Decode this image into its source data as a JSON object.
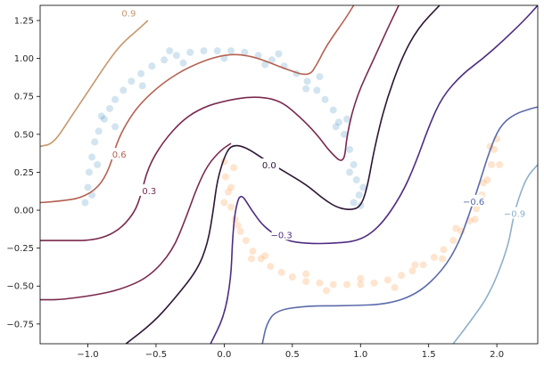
{
  "chart_data": {
    "type": "scatter",
    "title": "",
    "xlabel": "",
    "ylabel": "",
    "xlim": [
      -1.35,
      2.3
    ],
    "ylim": [
      -0.88,
      1.35
    ],
    "grid": false,
    "x_ticks": [
      {
        "value": -1.0,
        "label": "−1.0"
      },
      {
        "value": -0.5,
        "label": "−0.5"
      },
      {
        "value": 0.0,
        "label": "0.0"
      },
      {
        "value": 0.5,
        "label": "0.5"
      },
      {
        "value": 1.0,
        "label": "1.0"
      },
      {
        "value": 1.5,
        "label": "1.5"
      },
      {
        "value": 2.0,
        "label": "2.0"
      }
    ],
    "y_ticks": [
      {
        "value": -0.75,
        "label": "−0.75"
      },
      {
        "value": -0.5,
        "label": "−0.50"
      },
      {
        "value": -0.25,
        "label": "−0.25"
      },
      {
        "value": 0.0,
        "label": "0.00"
      },
      {
        "value": 0.25,
        "label": "0.25"
      },
      {
        "value": 0.5,
        "label": "0.50"
      },
      {
        "value": 0.75,
        "label": "0.75"
      },
      {
        "value": 1.0,
        "label": "1.00"
      },
      {
        "value": 1.25,
        "label": "1.25"
      }
    ],
    "scatter_series": [
      {
        "color": "#1f77b4",
        "opacity": 0.1,
        "points": [
          [
            -1.0,
            0.15
          ],
          [
            -0.99,
            0.25
          ],
          [
            -0.97,
            0.35
          ],
          [
            -0.95,
            0.45
          ],
          [
            -0.92,
            0.52
          ],
          [
            -0.88,
            0.6
          ],
          [
            -0.84,
            0.67
          ],
          [
            -0.8,
            0.73
          ],
          [
            -0.74,
            0.79
          ],
          [
            -0.68,
            0.85
          ],
          [
            -0.61,
            0.9
          ],
          [
            -0.53,
            0.95
          ],
          [
            -0.44,
            0.99
          ],
          [
            -0.35,
            1.02
          ],
          [
            -0.25,
            1.04
          ],
          [
            -0.15,
            1.05
          ],
          [
            -0.05,
            1.05
          ],
          [
            0.05,
            1.05
          ],
          [
            0.15,
            1.04
          ],
          [
            0.25,
            1.02
          ],
          [
            0.35,
            0.99
          ],
          [
            0.44,
            0.95
          ],
          [
            0.53,
            0.9
          ],
          [
            0.61,
            0.85
          ],
          [
            0.68,
            0.79
          ],
          [
            0.74,
            0.73
          ],
          [
            0.8,
            0.66
          ],
          [
            0.84,
            0.58
          ],
          [
            0.88,
            0.5
          ],
          [
            0.92,
            0.4
          ],
          [
            0.95,
            0.3
          ],
          [
            0.97,
            0.2
          ],
          [
            0.99,
            0.1
          ],
          [
            1.0,
            0.03
          ],
          [
            -0.97,
            0.1
          ],
          [
            -0.93,
            0.3
          ],
          [
            -0.8,
            0.55
          ],
          [
            -0.6,
            0.82
          ],
          [
            -0.3,
            0.97
          ],
          [
            0.0,
            1.0
          ],
          [
            0.3,
            0.96
          ],
          [
            0.6,
            0.8
          ],
          [
            0.82,
            0.55
          ],
          [
            0.92,
            0.25
          ],
          [
            0.95,
            0.05
          ],
          [
            -1.02,
            0.05
          ],
          [
            -0.9,
            0.62
          ],
          [
            -0.4,
            1.05
          ],
          [
            0.4,
            1.03
          ],
          [
            0.7,
            0.88
          ],
          [
            0.9,
            0.6
          ],
          [
            1.02,
            0.15
          ]
        ]
      },
      {
        "color": "#ff7f0e",
        "opacity": 0.1,
        "points": [
          [
            0.0,
            0.32
          ],
          [
            0.01,
            0.22
          ],
          [
            0.03,
            0.12
          ],
          [
            0.05,
            0.02
          ],
          [
            0.08,
            -0.06
          ],
          [
            0.12,
            -0.14
          ],
          [
            0.16,
            -0.2
          ],
          [
            0.21,
            -0.27
          ],
          [
            0.27,
            -0.32
          ],
          [
            0.34,
            -0.37
          ],
          [
            0.42,
            -0.41
          ],
          [
            0.5,
            -0.44
          ],
          [
            0.6,
            -0.47
          ],
          [
            0.7,
            -0.48
          ],
          [
            0.8,
            -0.49
          ],
          [
            0.9,
            -0.49
          ],
          [
            1.0,
            -0.49
          ],
          [
            1.1,
            -0.48
          ],
          [
            1.2,
            -0.46
          ],
          [
            1.3,
            -0.43
          ],
          [
            1.38,
            -0.4
          ],
          [
            1.46,
            -0.36
          ],
          [
            1.54,
            -0.31
          ],
          [
            1.61,
            -0.26
          ],
          [
            1.68,
            -0.2
          ],
          [
            1.74,
            -0.14
          ],
          [
            1.8,
            -0.07
          ],
          [
            1.85,
            0.01
          ],
          [
            1.89,
            0.1
          ],
          [
            1.93,
            0.2
          ],
          [
            1.96,
            0.3
          ],
          [
            1.98,
            0.4
          ],
          [
            2.0,
            0.47
          ],
          [
            0.05,
            0.15
          ],
          [
            0.1,
            -0.1
          ],
          [
            0.3,
            -0.3
          ],
          [
            0.6,
            -0.42
          ],
          [
            1.0,
            -0.45
          ],
          [
            1.4,
            -0.36
          ],
          [
            1.7,
            -0.12
          ],
          [
            1.9,
            0.18
          ],
          [
            1.95,
            0.42
          ],
          [
            0.0,
            0.05
          ],
          [
            0.2,
            -0.32
          ],
          [
            0.75,
            -0.53
          ],
          [
            1.25,
            -0.51
          ],
          [
            1.6,
            -0.32
          ],
          [
            1.84,
            -0.06
          ],
          [
            2.02,
            0.3
          ],
          [
            0.07,
            0.28
          ]
        ]
      }
    ],
    "contours": [
      {
        "level": "0.9",
        "color": "#c7966b",
        "points": [
          [
            -1.35,
            0.42
          ],
          [
            -1.25,
            0.44
          ],
          [
            -1.12,
            0.62
          ],
          [
            -1.0,
            0.78
          ],
          [
            -0.86,
            0.97
          ],
          [
            -0.76,
            1.09
          ],
          [
            -0.62,
            1.2
          ],
          [
            -0.56,
            1.25
          ]
        ],
        "label_at": [
          -0.7,
          1.3
        ]
      },
      {
        "level": "0.6",
        "color": "#b5604f",
        "points": [
          [
            -1.35,
            0.05
          ],
          [
            -1.2,
            0.06
          ],
          [
            -1.05,
            0.08
          ],
          [
            -0.92,
            0.15
          ],
          [
            -0.84,
            0.28
          ],
          [
            -0.79,
            0.44
          ],
          [
            -0.72,
            0.57
          ],
          [
            -0.62,
            0.7
          ],
          [
            -0.45,
            0.84
          ],
          [
            -0.25,
            0.95
          ],
          [
            0.0,
            1.03
          ],
          [
            0.2,
            1.02
          ],
          [
            0.45,
            0.93
          ],
          [
            0.62,
            0.88
          ],
          [
            0.68,
            0.96
          ],
          [
            0.73,
            1.05
          ],
          [
            0.8,
            1.15
          ],
          [
            0.88,
            1.25
          ],
          [
            0.95,
            1.35
          ]
        ],
        "label_at": [
          -0.77,
          0.37
        ]
      },
      {
        "level": "0.3",
        "color": "#79294f",
        "points": [
          [
            -1.35,
            -0.2
          ],
          [
            -1.2,
            -0.2
          ],
          [
            -0.95,
            -0.2
          ],
          [
            -0.78,
            -0.14
          ],
          [
            -0.66,
            -0.02
          ],
          [
            -0.61,
            0.1
          ],
          [
            -0.56,
            0.28
          ],
          [
            -0.45,
            0.45
          ],
          [
            -0.3,
            0.6
          ],
          [
            -0.15,
            0.68
          ],
          [
            0.0,
            0.72
          ],
          [
            0.2,
            0.75
          ],
          [
            0.4,
            0.73
          ],
          [
            0.55,
            0.62
          ],
          [
            0.68,
            0.5
          ],
          [
            0.78,
            0.38
          ],
          [
            0.88,
            0.3
          ],
          [
            0.9,
            0.5
          ],
          [
            0.97,
            0.75
          ],
          [
            1.1,
            1.0
          ],
          [
            1.2,
            1.2
          ],
          [
            1.28,
            1.35
          ]
        ],
        "label_at": [
          -0.55,
          0.13
        ]
      },
      {
        "level": "0.3b",
        "color": "#79294f",
        "points": [
          [
            -1.35,
            -0.59
          ],
          [
            -1.2,
            -0.59
          ],
          [
            -0.95,
            -0.56
          ],
          [
            -0.75,
            -0.52
          ],
          [
            -0.55,
            -0.44
          ],
          [
            -0.38,
            -0.27
          ],
          [
            -0.28,
            -0.05
          ],
          [
            -0.2,
            0.15
          ],
          [
            -0.12,
            0.3
          ],
          [
            -0.02,
            0.4
          ],
          [
            0.05,
            0.44
          ]
        ],
        "label_at": null
      },
      {
        "level": "0.0",
        "color": "#2d1634",
        "points": [
          [
            -0.72,
            -0.88
          ],
          [
            -0.52,
            -0.74
          ],
          [
            -0.38,
            -0.6
          ],
          [
            -0.2,
            -0.4
          ],
          [
            -0.12,
            -0.22
          ],
          [
            -0.08,
            0.0
          ],
          [
            -0.05,
            0.2
          ],
          [
            0.0,
            0.35
          ],
          [
            0.05,
            0.43
          ],
          [
            0.15,
            0.42
          ],
          [
            0.3,
            0.33
          ],
          [
            0.45,
            0.25
          ],
          [
            0.6,
            0.17
          ],
          [
            0.72,
            0.08
          ],
          [
            0.82,
            0.02
          ],
          [
            0.92,
            0.0
          ],
          [
            1.0,
            0.02
          ],
          [
            1.05,
            0.15
          ],
          [
            1.1,
            0.4
          ],
          [
            1.18,
            0.7
          ],
          [
            1.3,
            1.0
          ],
          [
            1.42,
            1.2
          ],
          [
            1.58,
            1.35
          ]
        ],
        "label_at": [
          0.33,
          0.3
        ]
      },
      {
        "level": "−0.3",
        "color": "#4e2c80",
        "points": [
          [
            -0.1,
            -0.88
          ],
          [
            0.0,
            -0.7
          ],
          [
            0.05,
            -0.45
          ],
          [
            0.06,
            -0.2
          ],
          [
            0.08,
            -0.0
          ],
          [
            0.12,
            0.12
          ],
          [
            0.2,
            0.0
          ],
          [
            0.3,
            -0.12
          ],
          [
            0.45,
            -0.2
          ],
          [
            0.6,
            -0.22
          ],
          [
            0.8,
            -0.22
          ],
          [
            1.0,
            -0.2
          ],
          [
            1.15,
            -0.1
          ],
          [
            1.3,
            0.1
          ],
          [
            1.4,
            0.3
          ],
          [
            1.5,
            0.55
          ],
          [
            1.6,
            0.75
          ],
          [
            1.75,
            0.9
          ],
          [
            1.9,
            1.0
          ],
          [
            2.05,
            1.12
          ],
          [
            2.2,
            1.25
          ],
          [
            2.3,
            1.35
          ]
        ],
        "label_at": [
          0.42,
          -0.16
        ]
      },
      {
        "level": "−0.6",
        "color": "#5b6aaa",
        "points": [
          [
            0.28,
            -0.88
          ],
          [
            0.31,
            -0.75
          ],
          [
            0.38,
            -0.66
          ],
          [
            0.6,
            -0.63
          ],
          [
            0.9,
            -0.63
          ],
          [
            1.2,
            -0.62
          ],
          [
            1.42,
            -0.55
          ],
          [
            1.6,
            -0.4
          ],
          [
            1.72,
            -0.22
          ],
          [
            1.8,
            -0.02
          ],
          [
            1.88,
            0.2
          ],
          [
            1.95,
            0.4
          ],
          [
            2.02,
            0.55
          ],
          [
            2.12,
            0.63
          ],
          [
            2.25,
            0.67
          ],
          [
            2.3,
            0.68
          ]
        ],
        "label_at": [
          1.83,
          0.06
        ]
      },
      {
        "level": "−0.9",
        "color": "#8fb0c9",
        "points": [
          [
            1.68,
            -0.88
          ],
          [
            1.8,
            -0.74
          ],
          [
            1.95,
            -0.55
          ],
          [
            2.08,
            -0.25
          ],
          [
            2.12,
            -0.05
          ],
          [
            2.16,
            0.08
          ],
          [
            2.22,
            0.22
          ],
          [
            2.3,
            0.3
          ]
        ],
        "label_at": [
          2.13,
          -0.02
        ]
      }
    ]
  }
}
